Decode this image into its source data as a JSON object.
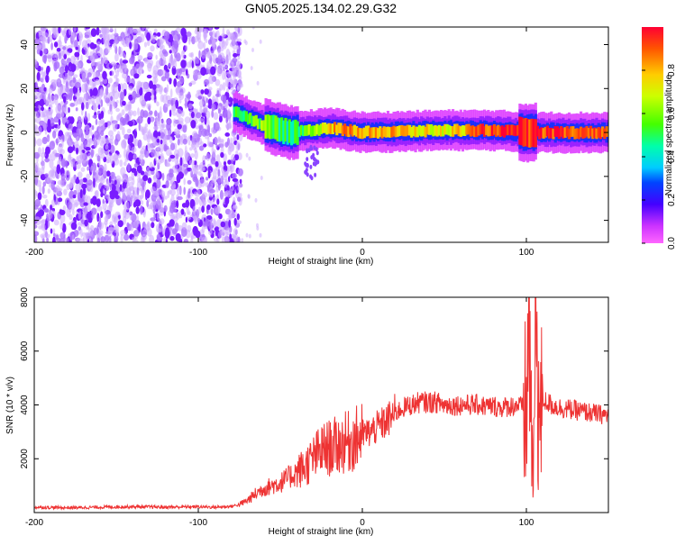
{
  "title": "GN05.2025.134.02.29.G32",
  "chart_data": [
    {
      "type": "heatmap",
      "title": "GN05.2025.134.02.29.G32",
      "xlabel": "Height of straight line (km)",
      "ylabel": "Frequency (Hz)",
      "xlim": [
        -200,
        150
      ],
      "ylim": [
        -50,
        48
      ],
      "xticks": [
        -200,
        -100,
        0,
        100
      ],
      "yticks": [
        -40,
        -20,
        0,
        20,
        40
      ],
      "colorbar": {
        "label": "Normalized spectral amplitude",
        "ticks": [
          0.0,
          0.2,
          0.4,
          0.6,
          0.8
        ],
        "range": [
          0,
          1
        ],
        "colormap": "rainbow"
      },
      "description_points": [
        {
          "x": -200,
          "y": 0,
          "value": 0.1
        },
        {
          "x": -80,
          "y": 0,
          "value": 0.1
        },
        {
          "x": -80,
          "y": 10,
          "value": 0.5
        },
        {
          "x": -60,
          "y": 3,
          "value": 0.6
        },
        {
          "x": -45,
          "y": 0,
          "value": 0.45
        },
        {
          "x": -20,
          "y": 2,
          "value": 0.8
        },
        {
          "x": 0,
          "y": 0,
          "value": 0.85
        },
        {
          "x": 50,
          "y": 1,
          "value": 0.7
        },
        {
          "x": 80,
          "y": 1,
          "value": 0.95
        },
        {
          "x": 100,
          "y": 0,
          "value": 0.95
        },
        {
          "x": 150,
          "y": 0,
          "value": 0.85
        }
      ]
    },
    {
      "type": "line",
      "xlabel": "Height of straight line (km)",
      "ylabel": "SNR (10 * v/v)",
      "xlim": [
        -200,
        150
      ],
      "ylim": [
        0,
        8000
      ],
      "xticks": [
        -200,
        -100,
        0,
        100
      ],
      "yticks": [
        2000,
        4000,
        6000,
        8000
      ],
      "color": "#ee3333",
      "series": [
        {
          "x": [
            -200,
            -180,
            -160,
            -140,
            -120,
            -100,
            -90,
            -80,
            -75,
            -70,
            -65,
            -60,
            -55,
            -50,
            -45,
            -40,
            -35,
            -30,
            -25,
            -20,
            -15,
            -10,
            -5,
            0,
            5,
            10,
            15,
            20,
            25,
            30,
            35,
            40,
            45,
            50,
            55,
            60,
            65,
            70,
            75,
            80,
            85,
            90,
            95,
            100,
            102,
            104,
            106,
            108,
            110,
            115,
            120,
            130,
            140,
            150
          ],
          "y": [
            200,
            180,
            200,
            220,
            200,
            220,
            200,
            230,
            300,
            450,
            700,
            900,
            1000,
            1100,
            1300,
            1500,
            1700,
            2000,
            2300,
            2400,
            2500,
            2600,
            2700,
            2900,
            3000,
            3200,
            3400,
            3700,
            3900,
            4000,
            4100,
            4100,
            4100,
            4000,
            4000,
            4000,
            4000,
            4000,
            3950,
            3950,
            3900,
            3950,
            4000,
            3800,
            7200,
            600,
            7600,
            3200,
            4200,
            4000,
            3900,
            3800,
            3700,
            3600
          ]
        }
      ]
    }
  ]
}
